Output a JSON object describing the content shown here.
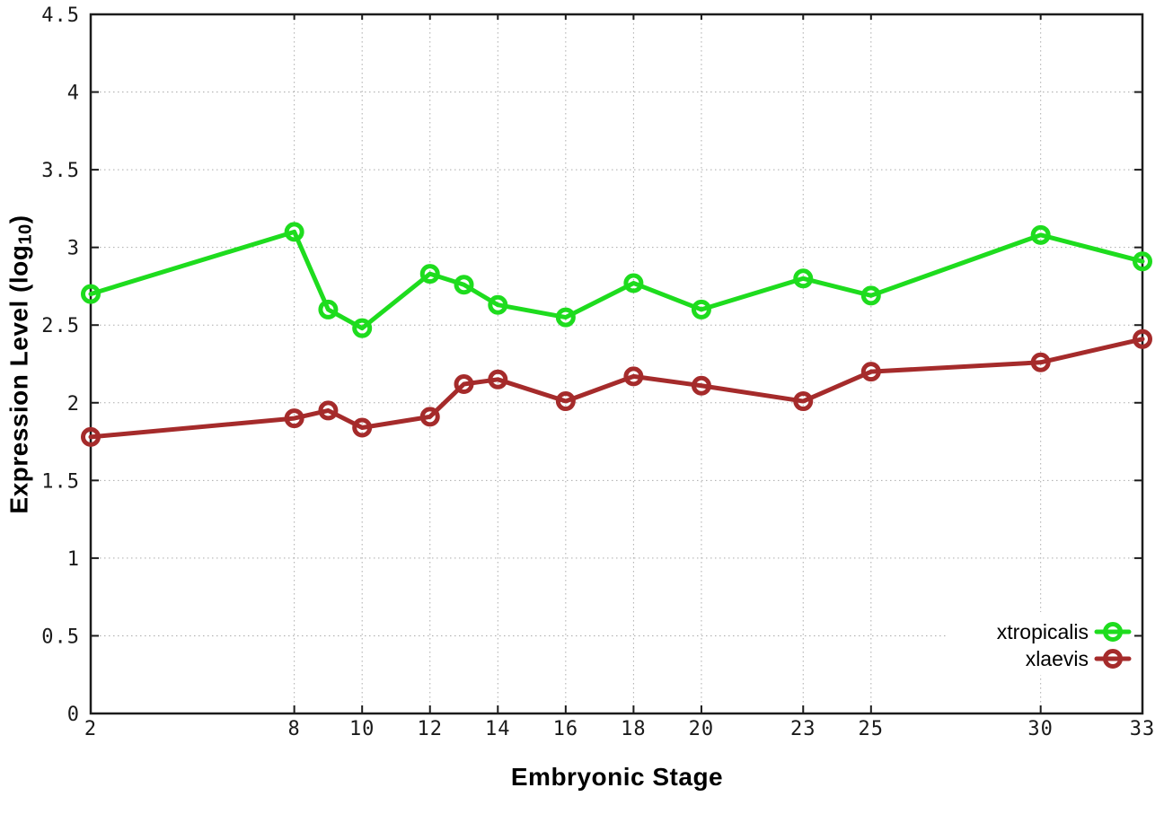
{
  "chart_data": {
    "type": "line",
    "title": "",
    "xlabel": "Embryonic Stage",
    "ylabel": "Expression Level (log10)",
    "ylabel_parts": {
      "prefix": "Expression Level (log",
      "sub": "10",
      "suffix": ")"
    },
    "x": [
      2,
      8,
      9,
      10,
      12,
      13,
      14,
      16,
      18,
      20,
      23,
      25,
      30,
      33
    ],
    "xlim": [
      2,
      33
    ],
    "ylim": [
      0,
      4.5
    ],
    "grid": true,
    "x_ticks": {
      "values": [
        2,
        8,
        10,
        12,
        14,
        16,
        18,
        20,
        23,
        25,
        30,
        33
      ],
      "labels": [
        "2",
        "8",
        "10",
        "12",
        "14",
        "16",
        "18",
        "20",
        "23",
        "25",
        "30",
        "33"
      ]
    },
    "y_ticks": {
      "values": [
        0,
        0.5,
        1,
        1.5,
        2,
        2.5,
        3,
        3.5,
        4,
        4.5
      ],
      "labels": [
        "0",
        "0.5",
        "1",
        "1.5",
        "2",
        "2.5",
        "3",
        "3.5",
        "4",
        "4.5"
      ]
    },
    "legend": {
      "position": "inside-bottom-right",
      "entries": [
        "xtropicalis",
        "xlaevis"
      ]
    },
    "series": [
      {
        "name": "xtropicalis",
        "color": "#1EDC1E",
        "marker": "open-circle",
        "values": [
          2.7,
          3.1,
          2.6,
          2.48,
          2.83,
          2.76,
          2.63,
          2.55,
          2.77,
          2.6,
          2.8,
          2.69,
          3.08,
          2.91
        ]
      },
      {
        "name": "xlaevis",
        "color": "#A52B2B",
        "marker": "open-circle",
        "values": [
          1.78,
          1.9,
          1.95,
          1.84,
          1.91,
          2.12,
          2.15,
          2.01,
          2.17,
          2.11,
          2.01,
          2.2,
          2.26,
          2.41
        ]
      }
    ],
    "style_colors": {
      "background": "#ffffff",
      "grid": "#ababab",
      "border": "#1c1c1c",
      "tick_label": "#1a1a1a",
      "legend_text": "#000000"
    }
  }
}
